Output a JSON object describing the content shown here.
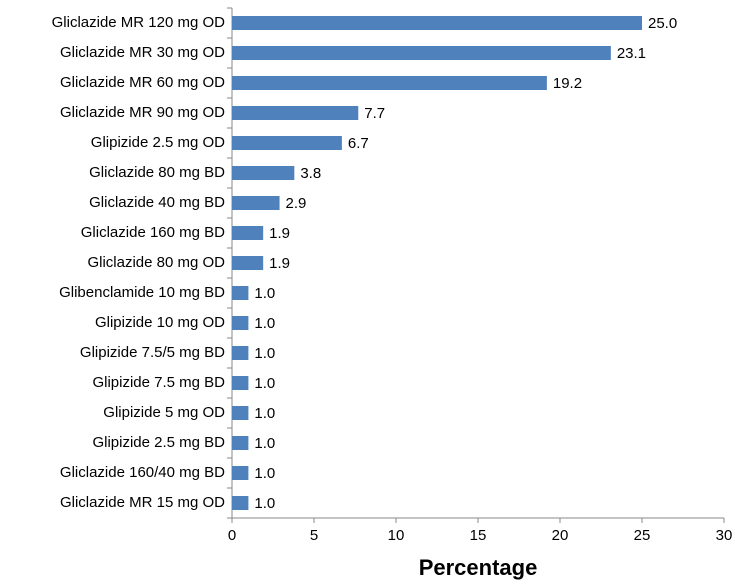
{
  "chart_data": {
    "type": "barh",
    "x_label": "Percentage",
    "categories": [
      "Gliclazide MR 120 mg OD",
      "Gliclazide MR 30 mg OD",
      "Gliclazide MR 60 mg OD",
      "Gliclazide MR 90 mg OD",
      "Glipizide 2.5 mg OD",
      "Gliclazide 80 mg BD",
      "Gliclazide 40 mg BD",
      "Gliclazide 160 mg BD",
      "Gliclazide 80 mg OD",
      "Glibenclamide 10 mg BD",
      "Glipizide 10 mg OD",
      "Glipizide 7.5/5 mg BD",
      "Glipizide 7.5 mg BD",
      "Glipizide 5 mg OD",
      "Glipizide 2.5 mg BD",
      "Gliclazide 160/40 mg BD",
      "Gliclazide MR 15 mg OD"
    ],
    "values": [
      25,
      23.1,
      19.2,
      7.7,
      6.7,
      3.8,
      2.9,
      1.9,
      1.9,
      1,
      1,
      1,
      1,
      1,
      1,
      1,
      1
    ],
    "value_labels": [
      "25.0",
      "23.1",
      "19.2",
      "7.7",
      "6.7",
      "3.8",
      "2.9",
      "1.9",
      "1.9",
      "1.0",
      "1.0",
      "1.0",
      "1.0",
      "1.0",
      "1.0",
      "1.0",
      "1.0"
    ],
    "color": "#4f81bd",
    "xlim": [
      0,
      30
    ],
    "xticks": [
      0,
      5,
      10,
      15,
      20,
      25,
      30
    ],
    "grid": false
  }
}
